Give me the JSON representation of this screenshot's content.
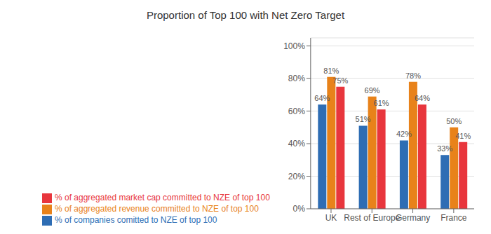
{
  "chart_data": {
    "type": "bar",
    "title": "Proportion of Top 100 with Net Zero Target",
    "categories": [
      "UK",
      "Rest of Europe",
      "Germany",
      "France"
    ],
    "series": [
      {
        "name": "% of companies comitted to NZE of top 100",
        "color": "#2e6db4",
        "values": [
          0.64,
          0.51,
          0.42,
          0.33
        ],
        "value_labels": [
          "64%",
          "51%",
          "42%",
          "33%"
        ]
      },
      {
        "name": "% of aggregated revenue committed to NZE of top 100",
        "color": "#e8821a",
        "values": [
          0.81,
          0.69,
          0.78,
          0.5
        ],
        "value_labels": [
          "81%",
          "69%",
          "78%",
          "50%"
        ]
      },
      {
        "name": "% of aggregated market cap committed to NZE of top 100",
        "color": "#e8363d",
        "values": [
          0.75,
          0.61,
          0.64,
          0.41
        ],
        "value_labels": [
          "75%",
          "61%",
          "64%",
          "41%"
        ]
      }
    ],
    "ylim": [
      0,
      1.05
    ],
    "yticks": [
      {
        "value": 0,
        "label": "0%"
      },
      {
        "value": 0.2,
        "label": "20%"
      },
      {
        "value": 0.4,
        "label": "40%"
      },
      {
        "value": 0.6,
        "label": "60%"
      },
      {
        "value": 0.8,
        "label": "80%"
      },
      {
        "value": 1.0,
        "label": "100%"
      }
    ],
    "grid": true,
    "legend": "bottom",
    "data_labels": true
  }
}
